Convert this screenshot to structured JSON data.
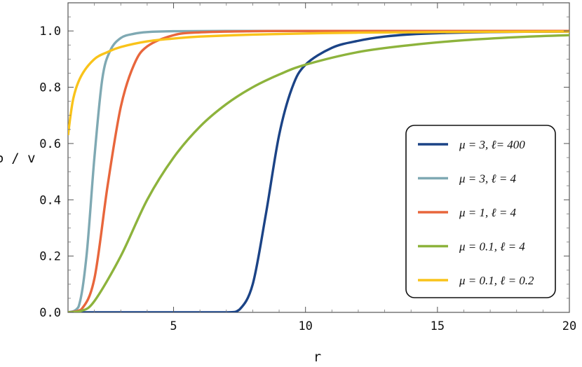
{
  "chart_data": {
    "type": "line",
    "title": "",
    "xlabel": "r",
    "ylabel": "φ / v",
    "xlim": [
      1,
      20
    ],
    "ylim": [
      0,
      1.1
    ],
    "grid": false,
    "legend_position": "right",
    "x_ticks": [
      5,
      10,
      15,
      20
    ],
    "x_tick_labels": [
      "5",
      "10",
      "15",
      "20"
    ],
    "y_ticks": [
      0.0,
      0.2,
      0.4,
      0.6,
      0.8,
      1.0
    ],
    "y_tick_labels": [
      "0.0",
      "0.2",
      "0.4",
      "0.6",
      "0.8",
      "1.0"
    ],
    "series": [
      {
        "name": "μ = 3,  ℓ= 400",
        "color": "#1B4386",
        "x": [
          1,
          3,
          5,
          7,
          7.5,
          8,
          8.5,
          9,
          9.5,
          10,
          11,
          12,
          13,
          14,
          15,
          17,
          20
        ],
        "y": [
          0,
          0,
          0,
          0,
          0.01,
          0.1,
          0.35,
          0.63,
          0.8,
          0.88,
          0.94,
          0.965,
          0.98,
          0.988,
          0.992,
          0.996,
          0.998
        ]
      },
      {
        "name": "μ = 3, ℓ = 4",
        "color": "#7FA9B3",
        "x": [
          1,
          1.4,
          1.7,
          2,
          2.3,
          2.6,
          3,
          3.5,
          4,
          5,
          7,
          10,
          15,
          20
        ],
        "y": [
          0,
          0.02,
          0.2,
          0.55,
          0.83,
          0.93,
          0.975,
          0.99,
          0.996,
          0.999,
          1.0,
          1.0,
          1.0,
          1.0
        ]
      },
      {
        "name": "μ = 1, ℓ = 4",
        "color": "#E8663C",
        "x": [
          1,
          1.5,
          2,
          2.5,
          3,
          3.5,
          4,
          5,
          6,
          8,
          10,
          15,
          20
        ],
        "y": [
          0,
          0.01,
          0.12,
          0.45,
          0.73,
          0.88,
          0.945,
          0.985,
          0.995,
          0.999,
          1.0,
          1.0,
          1.0
        ]
      },
      {
        "name": "μ = 0.1, ℓ = 4",
        "color": "#8DB33C",
        "x": [
          1,
          1.5,
          2,
          3,
          4,
          5,
          6,
          7,
          8,
          9,
          10,
          12,
          14,
          16,
          18,
          20
        ],
        "y": [
          0,
          0.005,
          0.04,
          0.2,
          0.4,
          0.55,
          0.66,
          0.74,
          0.8,
          0.845,
          0.88,
          0.925,
          0.95,
          0.967,
          0.978,
          0.985
        ]
      },
      {
        "name": "μ = 0.1, ℓ = 0.2",
        "color": "#F9C31A",
        "x": [
          1,
          1.2,
          1.5,
          2,
          2.5,
          3,
          4,
          5,
          6,
          8,
          10,
          12,
          15,
          20
        ],
        "y": [
          0.63,
          0.76,
          0.84,
          0.9,
          0.925,
          0.943,
          0.963,
          0.973,
          0.98,
          0.987,
          0.991,
          0.994,
          0.996,
          0.998
        ]
      }
    ]
  }
}
